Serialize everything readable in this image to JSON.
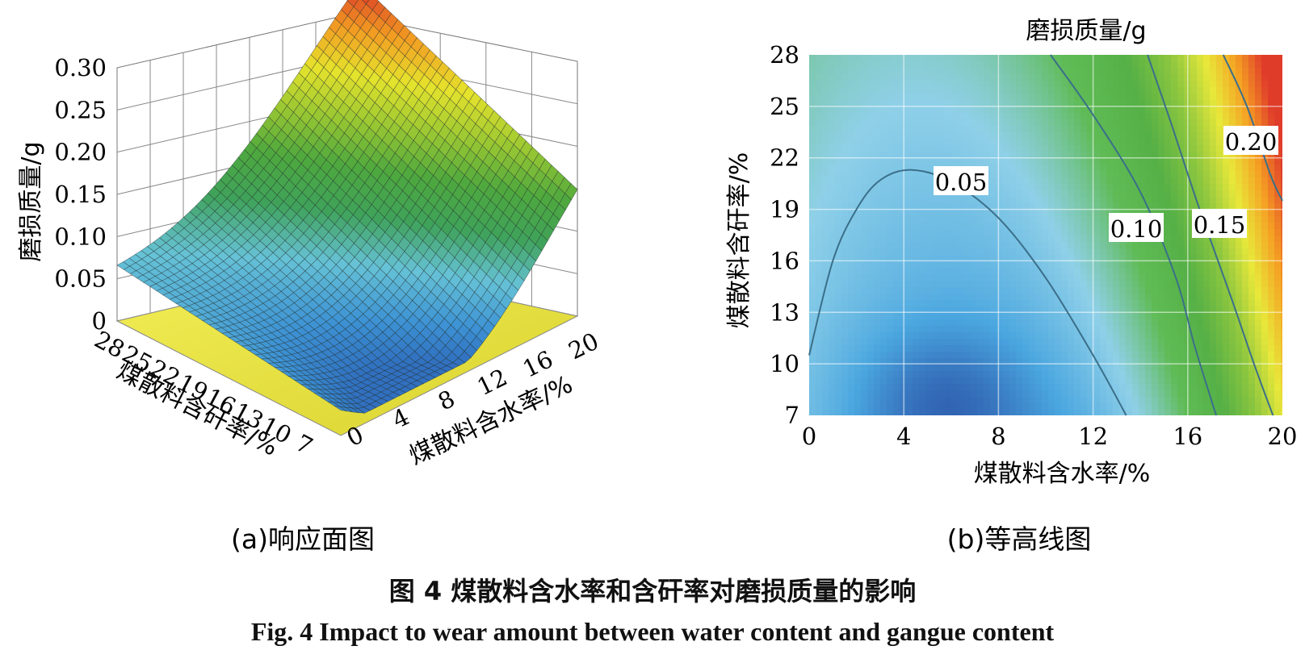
{
  "figure": {
    "caption_cn": "图 4    煤散料含水率和含矸率对磨损质量的影响",
    "caption_en": "Fig. 4    Impact to wear amount between water content and gangue content"
  },
  "chart_data": [
    {
      "type": "surface3d",
      "subtitle": "(a)响应面图",
      "zlabel": "磨损质量/g",
      "xlabel": "煤散料含水率/%",
      "ylabel": "煤散料含矸率/%",
      "z_ticks": [
        "0",
        "0.05",
        "0.10",
        "0.15",
        "0.20",
        "0.25",
        "0.30"
      ],
      "x_ticks": [
        "0",
        "4",
        "8",
        "12",
        "16",
        "20"
      ],
      "y_ticks": [
        "28",
        "25",
        "22",
        "19",
        "16",
        "13",
        "10",
        "7"
      ],
      "zlim": [
        0,
        0.3
      ],
      "xlim": [
        0,
        20
      ],
      "ylim": [
        7,
        28
      ],
      "surface_corners": [
        {
          "water": 0,
          "gangue": 28,
          "wear": 0.066
        },
        {
          "water": 20,
          "gangue": 28,
          "wear": 0.28
        },
        {
          "water": 20,
          "gangue": 7,
          "wear": 0.15
        },
        {
          "water": 0,
          "gangue": 7,
          "wear": 0.03
        }
      ],
      "floor_color": "#e8e040"
    },
    {
      "type": "contour",
      "subtitle": "(b)等高线图",
      "title": "磨损质量/g",
      "xlabel": "煤散料含水率/%",
      "ylabel": "煤散料含矸率/%",
      "x_ticks": [
        "0",
        "4",
        "8",
        "12",
        "16",
        "20"
      ],
      "y_ticks": [
        "28",
        "25",
        "22",
        "19",
        "16",
        "13",
        "10",
        "7"
      ],
      "xlim": [
        0,
        20
      ],
      "ylim": [
        7,
        28
      ],
      "contours": [
        {
          "label": "0.05",
          "value": 0.05,
          "points": [
            [
              0,
              10.5
            ],
            [
              1,
              16
            ],
            [
              2,
              19
            ],
            [
              3,
              20.7
            ],
            [
              4.3,
              21.3
            ],
            [
              6,
              20.6
            ],
            [
              8,
              18.5
            ],
            [
              10,
              15
            ],
            [
              12,
              10.5
            ],
            [
              13.4,
              7
            ]
          ]
        },
        {
          "label": "0.10",
          "value": 0.1,
          "points": [
            [
              10.2,
              28
            ],
            [
              12,
              24.5
            ],
            [
              14,
              20
            ],
            [
              15.5,
              15
            ],
            [
              16.3,
              11
            ],
            [
              17.2,
              7
            ]
          ]
        },
        {
          "label": "0.15",
          "value": 0.15,
          "points": [
            [
              14.3,
              28
            ],
            [
              15.3,
              24
            ],
            [
              16.5,
              19
            ],
            [
              17.8,
              14
            ],
            [
              18.8,
              10
            ],
            [
              19.6,
              7
            ]
          ]
        },
        {
          "label": "0.20",
          "value": 0.2,
          "points": [
            [
              17.5,
              28
            ],
            [
              18.5,
              25
            ],
            [
              19.5,
              21
            ],
            [
              20,
              19.5
            ]
          ]
        }
      ],
      "colormap": [
        "#2f5fb0",
        "#4aa6df",
        "#8fd0e8",
        "#5fbb55",
        "#55b046",
        "#8cc63f",
        "#e8e83a",
        "#f5a023",
        "#e03c2a"
      ]
    }
  ]
}
